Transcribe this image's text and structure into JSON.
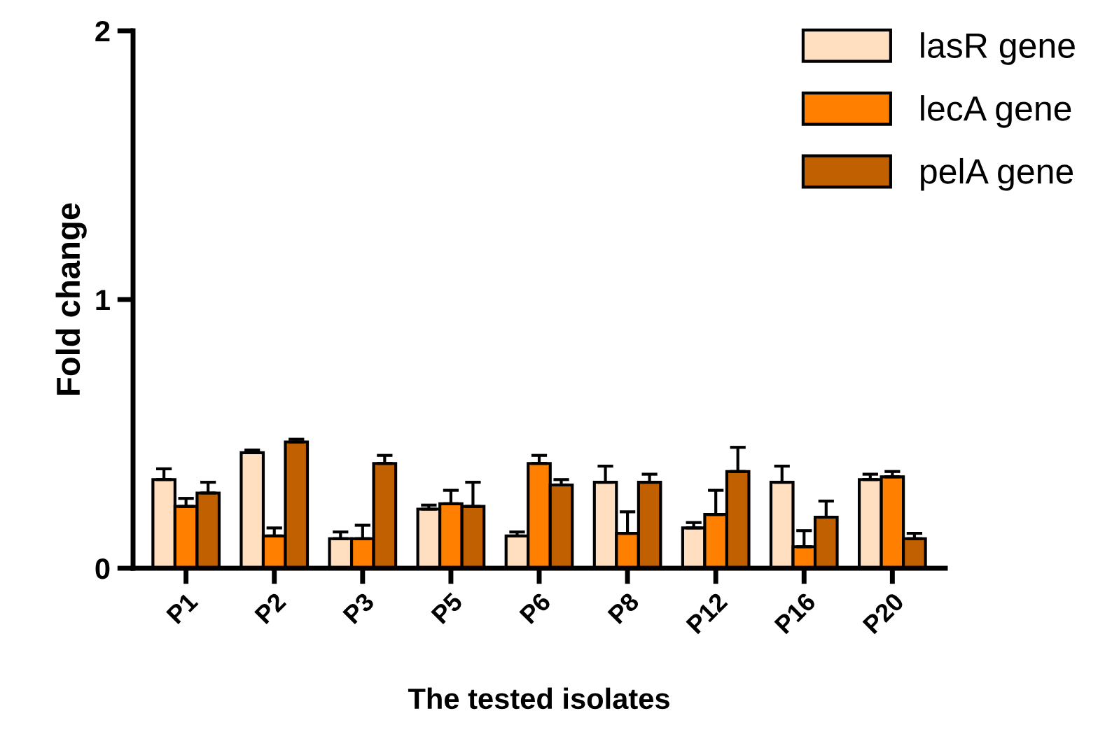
{
  "chart_data": {
    "type": "bar",
    "xlabel": "The tested isolates",
    "ylabel": "Fold change",
    "categories": [
      "P1",
      "P2",
      "P3",
      "P5",
      "P6",
      "P8",
      "P12",
      "P16",
      "P20"
    ],
    "series": [
      {
        "name": "lasR gene",
        "color": "#ffdfbf",
        "values": [
          0.33,
          0.43,
          0.11,
          0.22,
          0.12,
          0.32,
          0.15,
          0.32,
          0.33
        ],
        "errors": [
          [
            0.33,
            0.37
          ],
          [
            0.43,
            0.44
          ],
          [
            0.11,
            0.135
          ],
          [
            0.22,
            0.235
          ],
          [
            0.12,
            0.135
          ],
          [
            0.32,
            0.38
          ],
          [
            0.15,
            0.17
          ],
          [
            0.32,
            0.38
          ],
          [
            0.33,
            0.35
          ]
        ]
      },
      {
        "name": "lecA gene",
        "color": "#ff8000",
        "values": [
          0.23,
          0.12,
          0.11,
          0.24,
          0.39,
          0.13,
          0.2,
          0.08,
          0.34
        ],
        "errors": [
          [
            0.23,
            0.26
          ],
          [
            0.12,
            0.15
          ],
          [
            0.11,
            0.16
          ],
          [
            0.24,
            0.29
          ],
          [
            0.39,
            0.42
          ],
          [
            0.13,
            0.21
          ],
          [
            0.2,
            0.29
          ],
          [
            0.08,
            0.14
          ],
          [
            0.34,
            0.36
          ]
        ]
      },
      {
        "name": "pelA gene",
        "color": "#c06000",
        "values": [
          0.28,
          0.47,
          0.39,
          0.23,
          0.31,
          0.32,
          0.36,
          0.19,
          0.11
        ],
        "errors": [
          [
            0.28,
            0.32
          ],
          [
            0.47,
            0.48
          ],
          [
            0.39,
            0.42
          ],
          [
            0.23,
            0.32
          ],
          [
            0.31,
            0.33
          ],
          [
            0.32,
            0.35
          ],
          [
            0.36,
            0.45
          ],
          [
            0.19,
            0.25
          ],
          [
            0.11,
            0.13
          ]
        ]
      }
    ],
    "ylim": [
      0,
      2
    ],
    "yticks": [
      0,
      1,
      2
    ],
    "grid": false,
    "legend": "top right"
  }
}
